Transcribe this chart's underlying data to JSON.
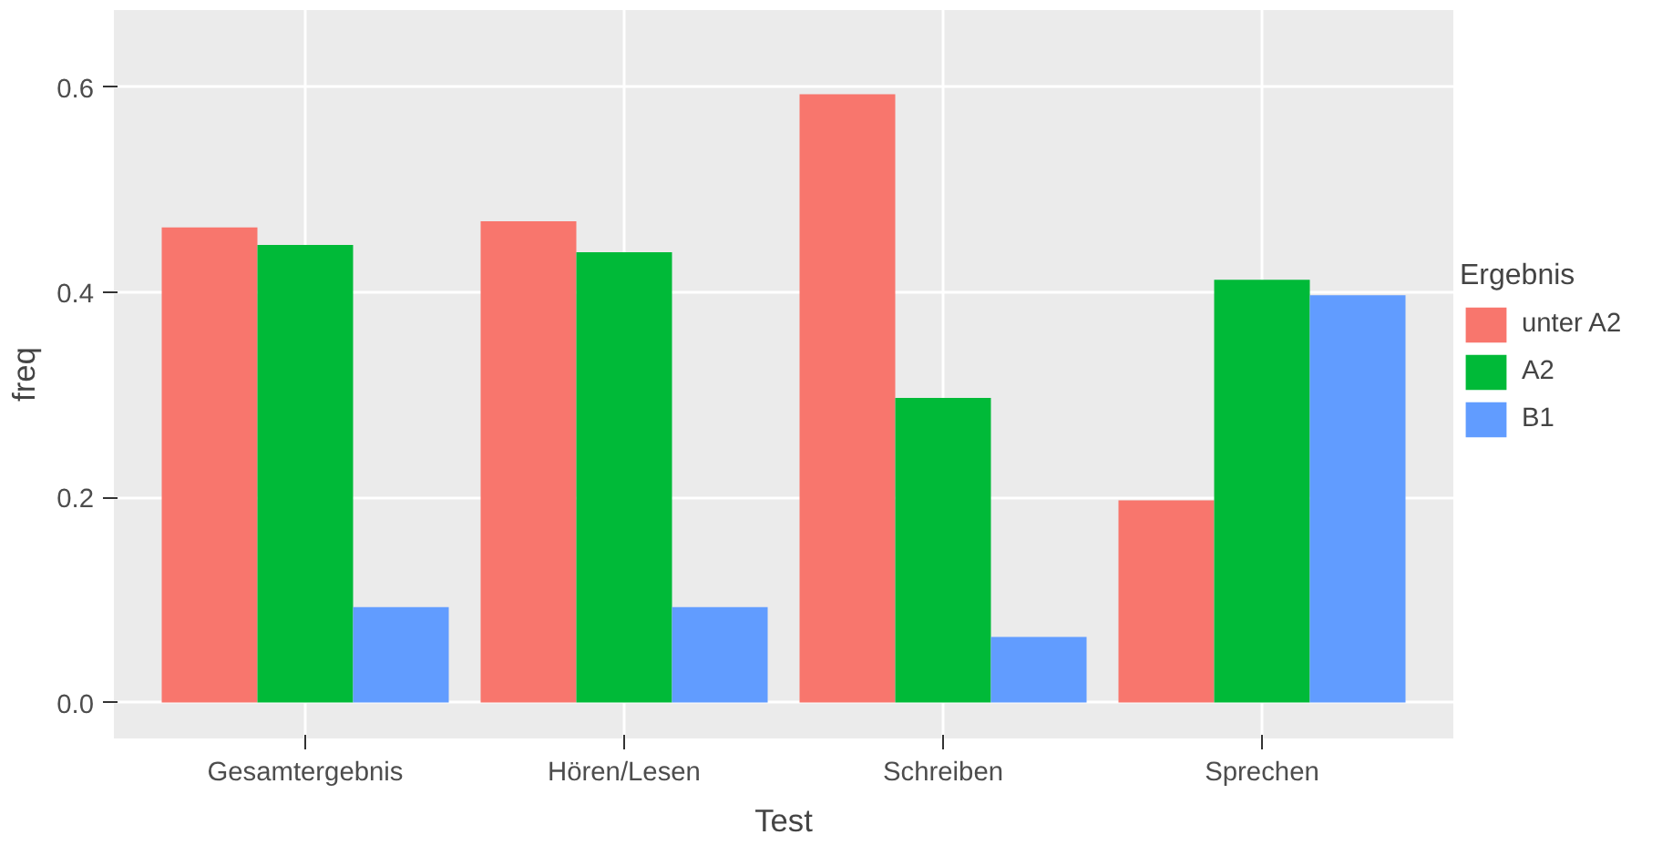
{
  "chart_data": {
    "type": "bar",
    "xlabel": "Test",
    "ylabel": "freq",
    "legend_title": "Ergebnis",
    "categories": [
      "Gesamtergebnis",
      "Hören/Lesen",
      "Schreiben",
      "Sprechen"
    ],
    "series": [
      {
        "name": "unter A2",
        "color": "#f8766d",
        "values": [
          0.463,
          0.469,
          0.593,
          0.197
        ]
      },
      {
        "name": "A2",
        "color": "#00ba38",
        "values": [
          0.446,
          0.439,
          0.297,
          0.412
        ]
      },
      {
        "name": "B1",
        "color": "#619cff",
        "values": [
          0.093,
          0.093,
          0.064,
          0.397
        ]
      }
    ],
    "ylim": [
      -0.035,
      0.675
    ],
    "yticks": [
      {
        "value": 0,
        "label": "0.0"
      },
      0.2,
      0.4,
      0.6
    ],
    "grid": true,
    "legend": "right"
  }
}
